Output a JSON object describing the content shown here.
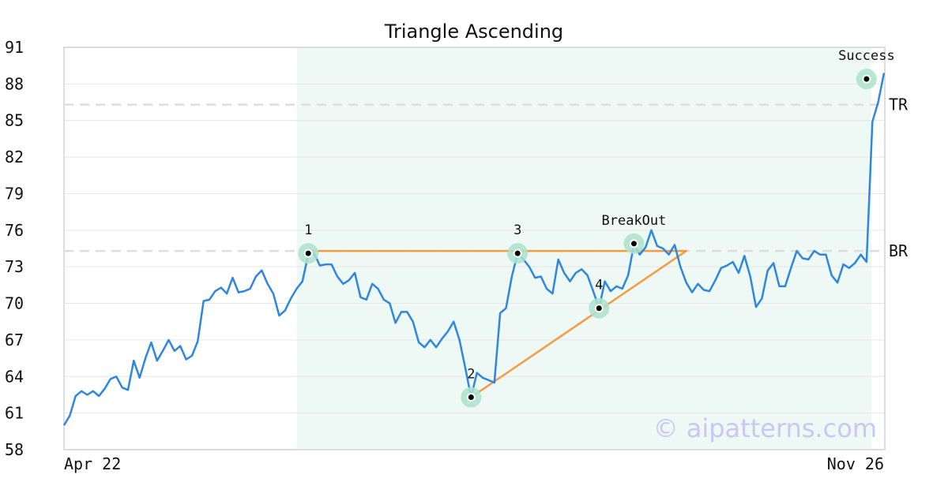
{
  "chart_data": {
    "type": "line",
    "title": "Triangle Ascending",
    "xlabel": "",
    "ylabel": "",
    "ylim": [
      58,
      91
    ],
    "yticks": [
      91,
      88,
      85,
      82,
      79,
      76,
      73,
      70,
      67,
      64,
      61,
      58
    ],
    "x_labels": {
      "start": "Apr 22",
      "end": "Nov 26"
    },
    "grid": "horizontal",
    "price": [
      60.0,
      60.8,
      62.4,
      62.8,
      62.5,
      62.8,
      62.4,
      63.0,
      63.8,
      64.0,
      63.1,
      62.9,
      65.3,
      63.9,
      65.5,
      66.8,
      65.3,
      66.1,
      67.0,
      66.1,
      66.5,
      65.4,
      65.7,
      66.9,
      70.2,
      70.3,
      71.0,
      71.3,
      70.8,
      72.1,
      70.9,
      71.0,
      71.2,
      72.2,
      72.7,
      71.6,
      70.8,
      69.0,
      69.4,
      70.4,
      71.2,
      71.8,
      74.0,
      74.1,
      73.1,
      73.2,
      73.2,
      72.2,
      71.6,
      71.9,
      72.5,
      70.5,
      70.3,
      71.6,
      71.2,
      70.3,
      70.0,
      68.4,
      69.3,
      69.3,
      68.5,
      66.8,
      66.4,
      67.0,
      66.4,
      67.1,
      67.7,
      68.5,
      67.0,
      64.7,
      62.3,
      64.3,
      63.9,
      63.7,
      63.5,
      69.2,
      69.6,
      72.2,
      74.1,
      73.6,
      73.0,
      72.1,
      72.2,
      71.2,
      70.8,
      73.6,
      72.5,
      71.8,
      72.5,
      72.8,
      72.3,
      71.0,
      69.6,
      71.8,
      71.0,
      71.4,
      71.2,
      72.3,
      74.8,
      74.0,
      74.6,
      76.0,
      74.7,
      74.5,
      74.0,
      74.8,
      73.0,
      71.7,
      70.9,
      71.6,
      71.1,
      71.0,
      71.9,
      72.9,
      73.1,
      73.4,
      72.5,
      73.9,
      72.2,
      69.7,
      70.4,
      72.7,
      73.3,
      71.4,
      71.4,
      72.9,
      74.3,
      73.7,
      73.6,
      74.3,
      74.0,
      74.0,
      72.3,
      71.7,
      73.2,
      72.9,
      73.3,
      74.0,
      73.4,
      84.9,
      86.5,
      88.9
    ],
    "levels": [
      {
        "name": "TR",
        "value": 86.3
      },
      {
        "name": "BR",
        "value": 74.3
      }
    ],
    "points": [
      {
        "label": "1",
        "index": 42,
        "value": 74.1
      },
      {
        "label": "2",
        "index": 70,
        "value": 62.3
      },
      {
        "label": "3",
        "index": 78,
        "value": 74.1
      },
      {
        "label": "4",
        "index": 92,
        "value": 69.6
      },
      {
        "label": "BreakOut",
        "index": 98,
        "value": 74.9
      },
      {
        "label": "Success",
        "index": 138,
        "value": 88.4
      }
    ],
    "pattern_lines": [
      {
        "from": [
          42,
          74.3
        ],
        "to": [
          107,
          74.3
        ]
      },
      {
        "from": [
          70,
          62.3
        ],
        "to": [
          107,
          74.3
        ]
      }
    ],
    "pattern_range": [
      40,
      138
    ],
    "colors": {
      "price": "#2e86de",
      "pattern": "#f39c44",
      "highlight": "#eef8f4",
      "marker_halo": "#abe3cc",
      "level_line": "#dddddd",
      "grid": "#e6e6e6",
      "frame": "#dddddd"
    }
  },
  "watermark": "© aipatterns.com"
}
